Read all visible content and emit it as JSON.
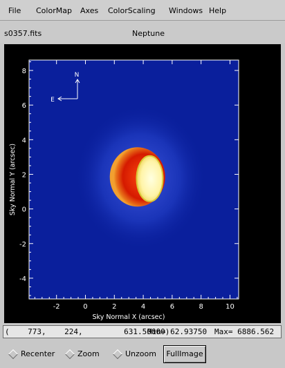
{
  "menu": [
    "File",
    "ColorMap",
    "Axes",
    "ColorScaling",
    "Windows",
    "Help"
  ],
  "info": {
    "filename": "s0357.fits",
    "object": "Neptune"
  },
  "plot": {
    "xlabel": "Sky Normal X (arcsec)",
    "ylabel": "Sky Normal Y (arcsec)",
    "xlim": [
      -3.9,
      10.6
    ],
    "ylim": [
      -5.2,
      8.6
    ],
    "xticks": [
      -2,
      0,
      2,
      4,
      6,
      8,
      10
    ],
    "yticks": [
      -4,
      -2,
      0,
      2,
      4,
      6,
      8
    ],
    "compass": {
      "north": "N",
      "east": "E"
    },
    "colors": {
      "background": "#0a1f9c",
      "planet_outer": "#d51a00",
      "planet_limb": "#e8741a",
      "bright_crescent": "#fff4a8"
    }
  },
  "status": {
    "coords": "(    773,    224,         631.50000)",
    "min": "Min= 62.93750",
    "max": "Max= 6886.562"
  },
  "controls": {
    "recenter": "Recenter",
    "zoom": "Zoom",
    "unzoom": "Unzoom",
    "fullimage": "FullImage"
  }
}
